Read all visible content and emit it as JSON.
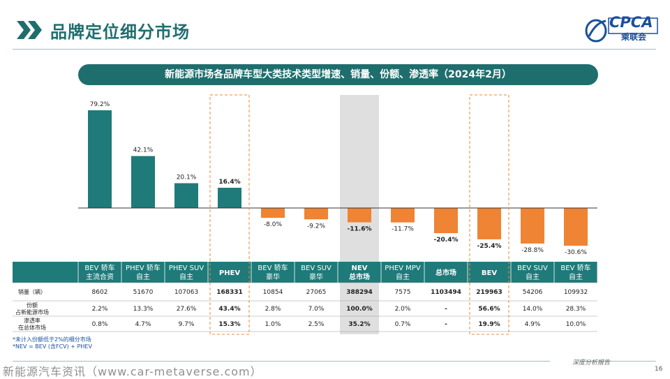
{
  "page_title": "品牌定位细分市场",
  "logo": {
    "text": "CPCA",
    "sub": "乘联会"
  },
  "chart_title": "新能源市场各品牌车型大类技术类型增速、销量、份额、渗透率（2024年2月）",
  "chart_data": {
    "type": "bar",
    "title": "新能源市场各品牌车型大类技术类型增速、销量、份额、渗透率（2024年2月）",
    "categories": [
      "BEV 轿车 主流合资",
      "PHEV 轿车 自主",
      "PHEV SUV 自主",
      "PHEV",
      "BEV 轿车 豪华",
      "BEV SUV 豪华",
      "NEV 总市场",
      "PHEV MPV 自主",
      "总市场",
      "BEV",
      "BEV SUV 自主",
      "BEV 轿车 自主"
    ],
    "values": [
      79.2,
      42.1,
      20.1,
      16.4,
      -8.0,
      -9.2,
      -11.6,
      -11.7,
      -20.4,
      -25.4,
      -28.8,
      -30.6
    ],
    "value_labels": [
      "79.2%",
      "42.1%",
      "20.1%",
      "16.4%",
      "-8.0%",
      "-9.2%",
      "-11.6%",
      "-11.7%",
      "-20.4%",
      "-25.4%",
      "-28.8%",
      "-30.6%"
    ],
    "bold_values": [
      false,
      false,
      false,
      true,
      false,
      false,
      true,
      false,
      true,
      true,
      false,
      false
    ],
    "ylim": [
      -35,
      90
    ],
    "positive_color": "#1f7a7a",
    "negative_color": "#ee8434",
    "highlight_dashed": [
      3,
      9
    ],
    "highlight_shaded": [
      6
    ],
    "table": {
      "header_rows": [
        [
          "BEV 轿车",
          "PHEV 轿车",
          "PHEV SUV",
          "PHEV",
          "BEV 轿车",
          "BEV SUV",
          "NEV",
          "PHEV MPV",
          "总市场",
          "BEV",
          "BEV SUV",
          "BEV 轿车"
        ],
        [
          "主流合资",
          "自主",
          "自主",
          "",
          "豪华",
          "豪华",
          "总市场",
          "自主",
          "",
          "",
          "自主",
          "自主"
        ]
      ],
      "rows": [
        {
          "label": [
            "销量（辆）"
          ],
          "cells": [
            "8602",
            "51670",
            "107063",
            "168331",
            "10854",
            "27065",
            "388294",
            "7575",
            "1103494",
            "219963",
            "54206",
            "109932"
          ]
        },
        {
          "label": [
            "份额",
            "占新能源市场"
          ],
          "cells": [
            "2.2%",
            "13.3%",
            "27.6%",
            "43.4%",
            "2.8%",
            "7.0%",
            "100.0%",
            "2.0%",
            "-",
            "56.6%",
            "14.0%",
            "28.3%"
          ]
        },
        {
          "label": [
            "渗透率",
            "在总体市场"
          ],
          "cells": [
            "0.8%",
            "4.7%",
            "9.7%",
            "15.3%",
            "1.0%",
            "2.5%",
            "35.2%",
            "0.7%",
            "-",
            "19.9%",
            "4.9%",
            "10.0%"
          ]
        }
      ]
    }
  },
  "footnotes": [
    "*未计入份额低于2%的细分市场",
    "*NEV = BEV (含FCV) + PHEV"
  ],
  "footer": {
    "tag": "深度分析报告",
    "page": "16",
    "watermark": "新能源汽车资讯（www.car-metaverse.com）"
  },
  "colors": {
    "brand": "#1f6e6e",
    "accent_orange": "#ee8434",
    "header_fill": "#1f7a7a",
    "zero_line": "#333333"
  }
}
